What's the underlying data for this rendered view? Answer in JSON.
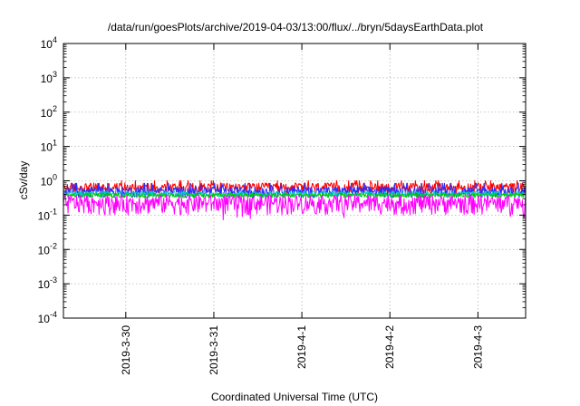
{
  "chart_data": {
    "type": "line",
    "title": "/data/run/goesPlots/archive/2019-04-03/13:00/flux/../bryn/5daysEarthData.plot",
    "xlabel": "Coordinated Universal Time (UTC)",
    "ylabel": "cSv/day",
    "yscale": "log",
    "ylim": [
      0.0001,
      10000
    ],
    "yticks": [
      {
        "base": "10",
        "exp": "4"
      },
      {
        "base": "10",
        "exp": "3"
      },
      {
        "base": "10",
        "exp": "2"
      },
      {
        "base": "10",
        "exp": "1"
      },
      {
        "base": "10",
        "exp": "0"
      },
      {
        "base": "10",
        "exp": "-1"
      },
      {
        "base": "10",
        "exp": "-2"
      },
      {
        "base": "10",
        "exp": "-3"
      },
      {
        "base": "10",
        "exp": "-4"
      }
    ],
    "xlim": [
      "2019-03-29 07:00",
      "2019-04-03 13:00"
    ],
    "xticks": [
      "2019-3-30",
      "2019-3-31",
      "2019-4-1",
      "2019-4-2",
      "2019-4-3"
    ],
    "grid": true,
    "series": [
      {
        "color": "#ff0000",
        "level": 0.65,
        "spread": 0.22
      },
      {
        "color": "#2b2bff",
        "level": 0.5,
        "spread": 0.18
      },
      {
        "color": "#00c8c8",
        "level": 0.42,
        "spread": 0.08
      },
      {
        "color": "#00c800",
        "level": 0.38,
        "spread": 0.06
      },
      {
        "color": "#ff00ff",
        "level": 0.24,
        "spread": 0.14,
        "dip_min": 0.07
      }
    ]
  }
}
